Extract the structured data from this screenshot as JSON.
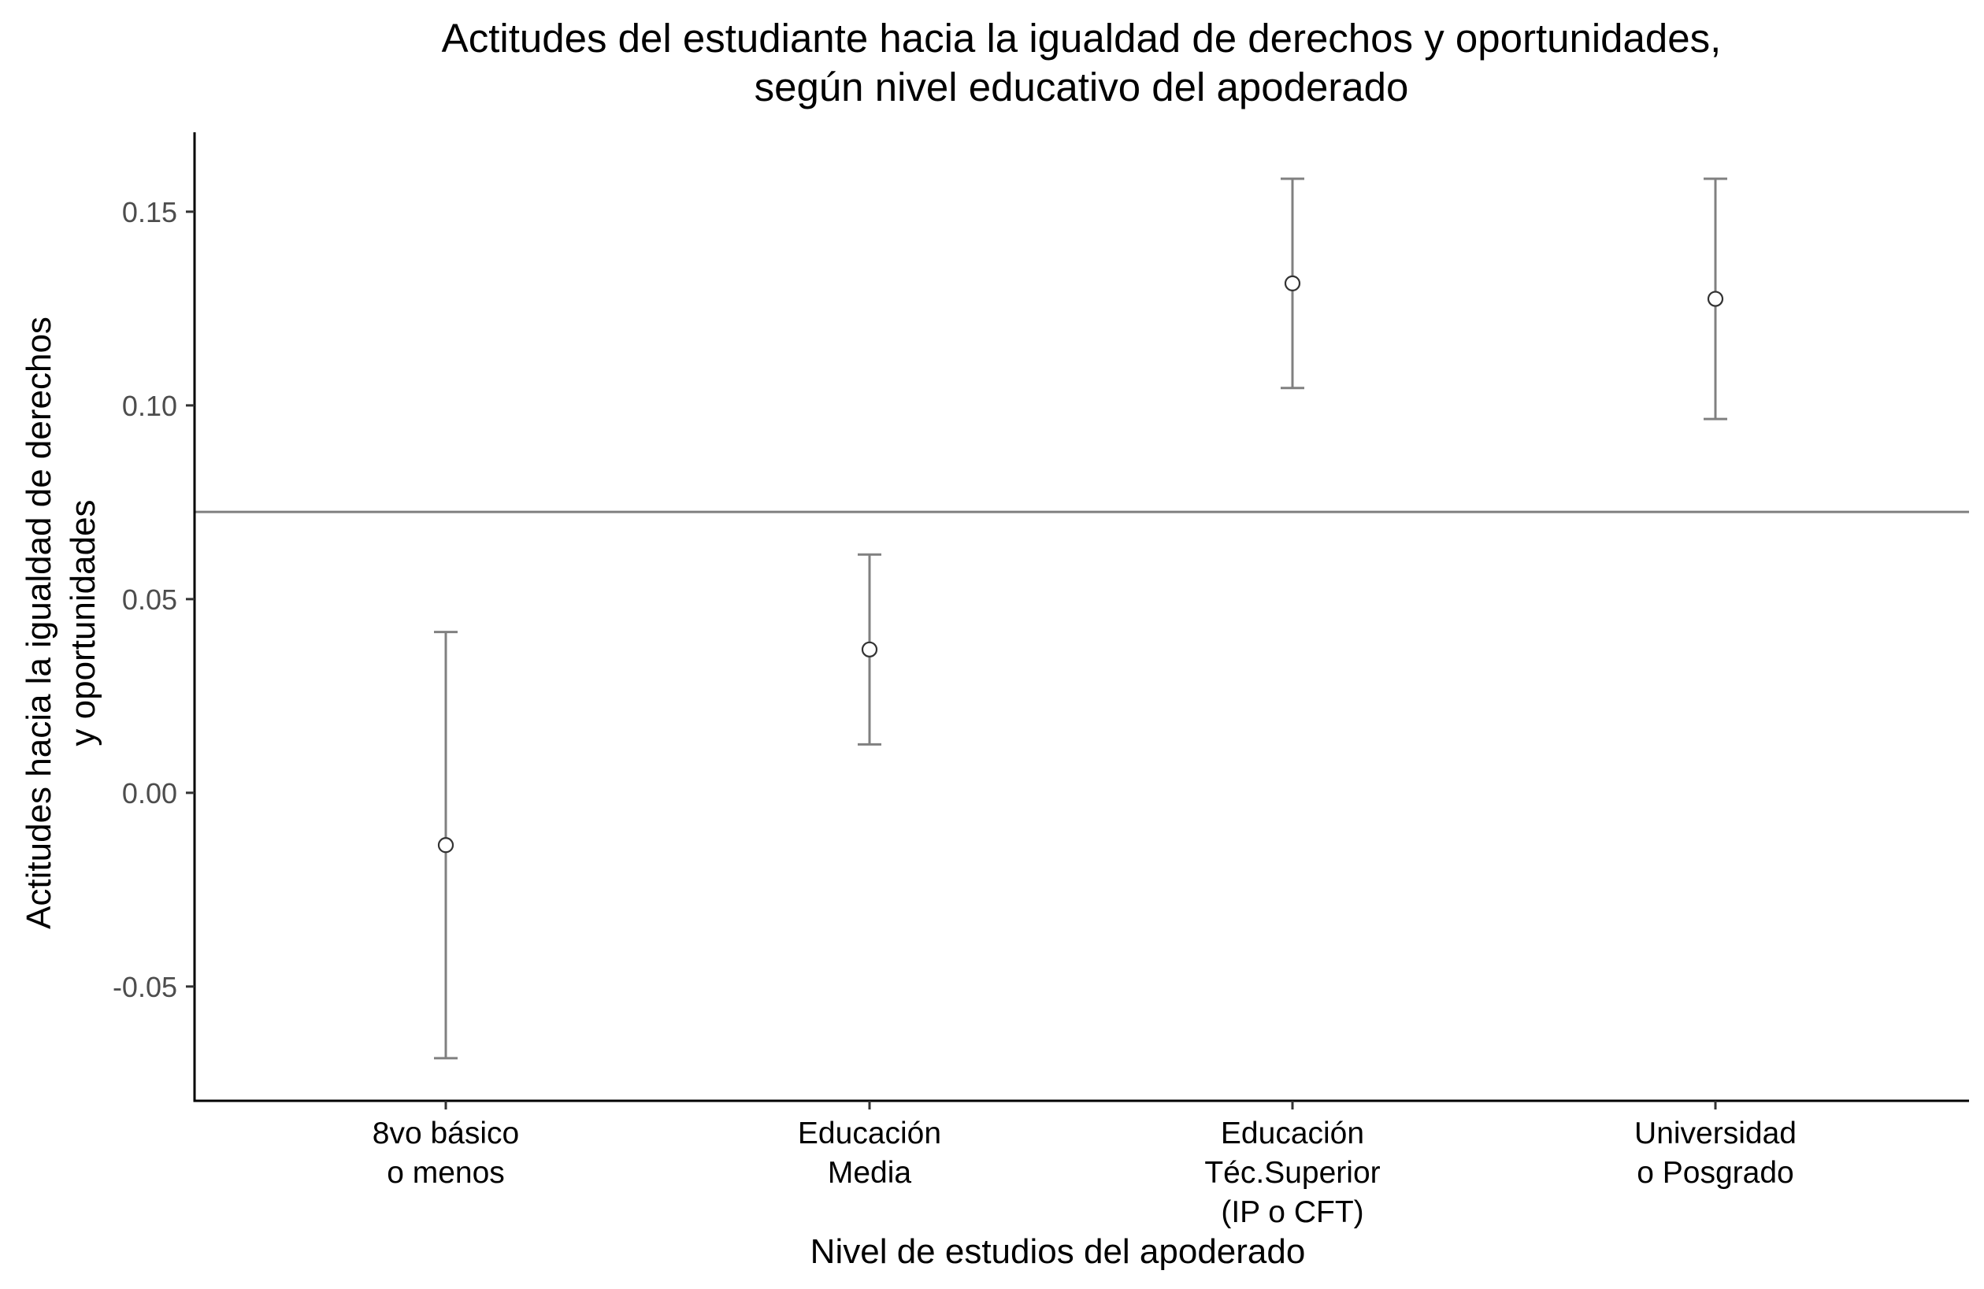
{
  "chart_data": {
    "type": "scatter",
    "title_lines": [
      "Actitudes del estudiante hacia la igualdad de derechos y oportunidades,",
      "según nivel educativo del apoderado"
    ],
    "xlabel": "Nivel de estudios del apoderado",
    "ylabel_lines": [
      "Actitudes hacia la igualdad de derechos",
      "y oportunidades"
    ],
    "categories": [
      [
        "8vo básico",
        "o menos"
      ],
      [
        "Educación",
        "Media"
      ],
      [
        "Educación",
        "Téc.Superior",
        "(IP o CFT)"
      ],
      [
        "Universidad",
        "o Posgrado"
      ]
    ],
    "values": [
      -0.0135,
      0.037,
      0.1315,
      0.1275
    ],
    "lower": [
      -0.0685,
      0.0125,
      0.1045,
      0.0965
    ],
    "upper": [
      0.0415,
      0.0615,
      0.1585,
      0.1585
    ],
    "reference_line": 0.0725,
    "y_ticks": [
      -0.05,
      0.0,
      0.05,
      0.1,
      0.15
    ],
    "y_tick_labels": [
      "-0.05",
      "0.00",
      "0.05",
      "0.10",
      "0.15"
    ],
    "ylim": [
      -0.0795,
      0.1705
    ],
    "grid": false,
    "legend": "none",
    "colors": {
      "errorbar": "#808080",
      "point_fill": "#ffffff",
      "point_stroke": "#333333",
      "reference_line": "#808080",
      "axis": "#000000"
    }
  }
}
